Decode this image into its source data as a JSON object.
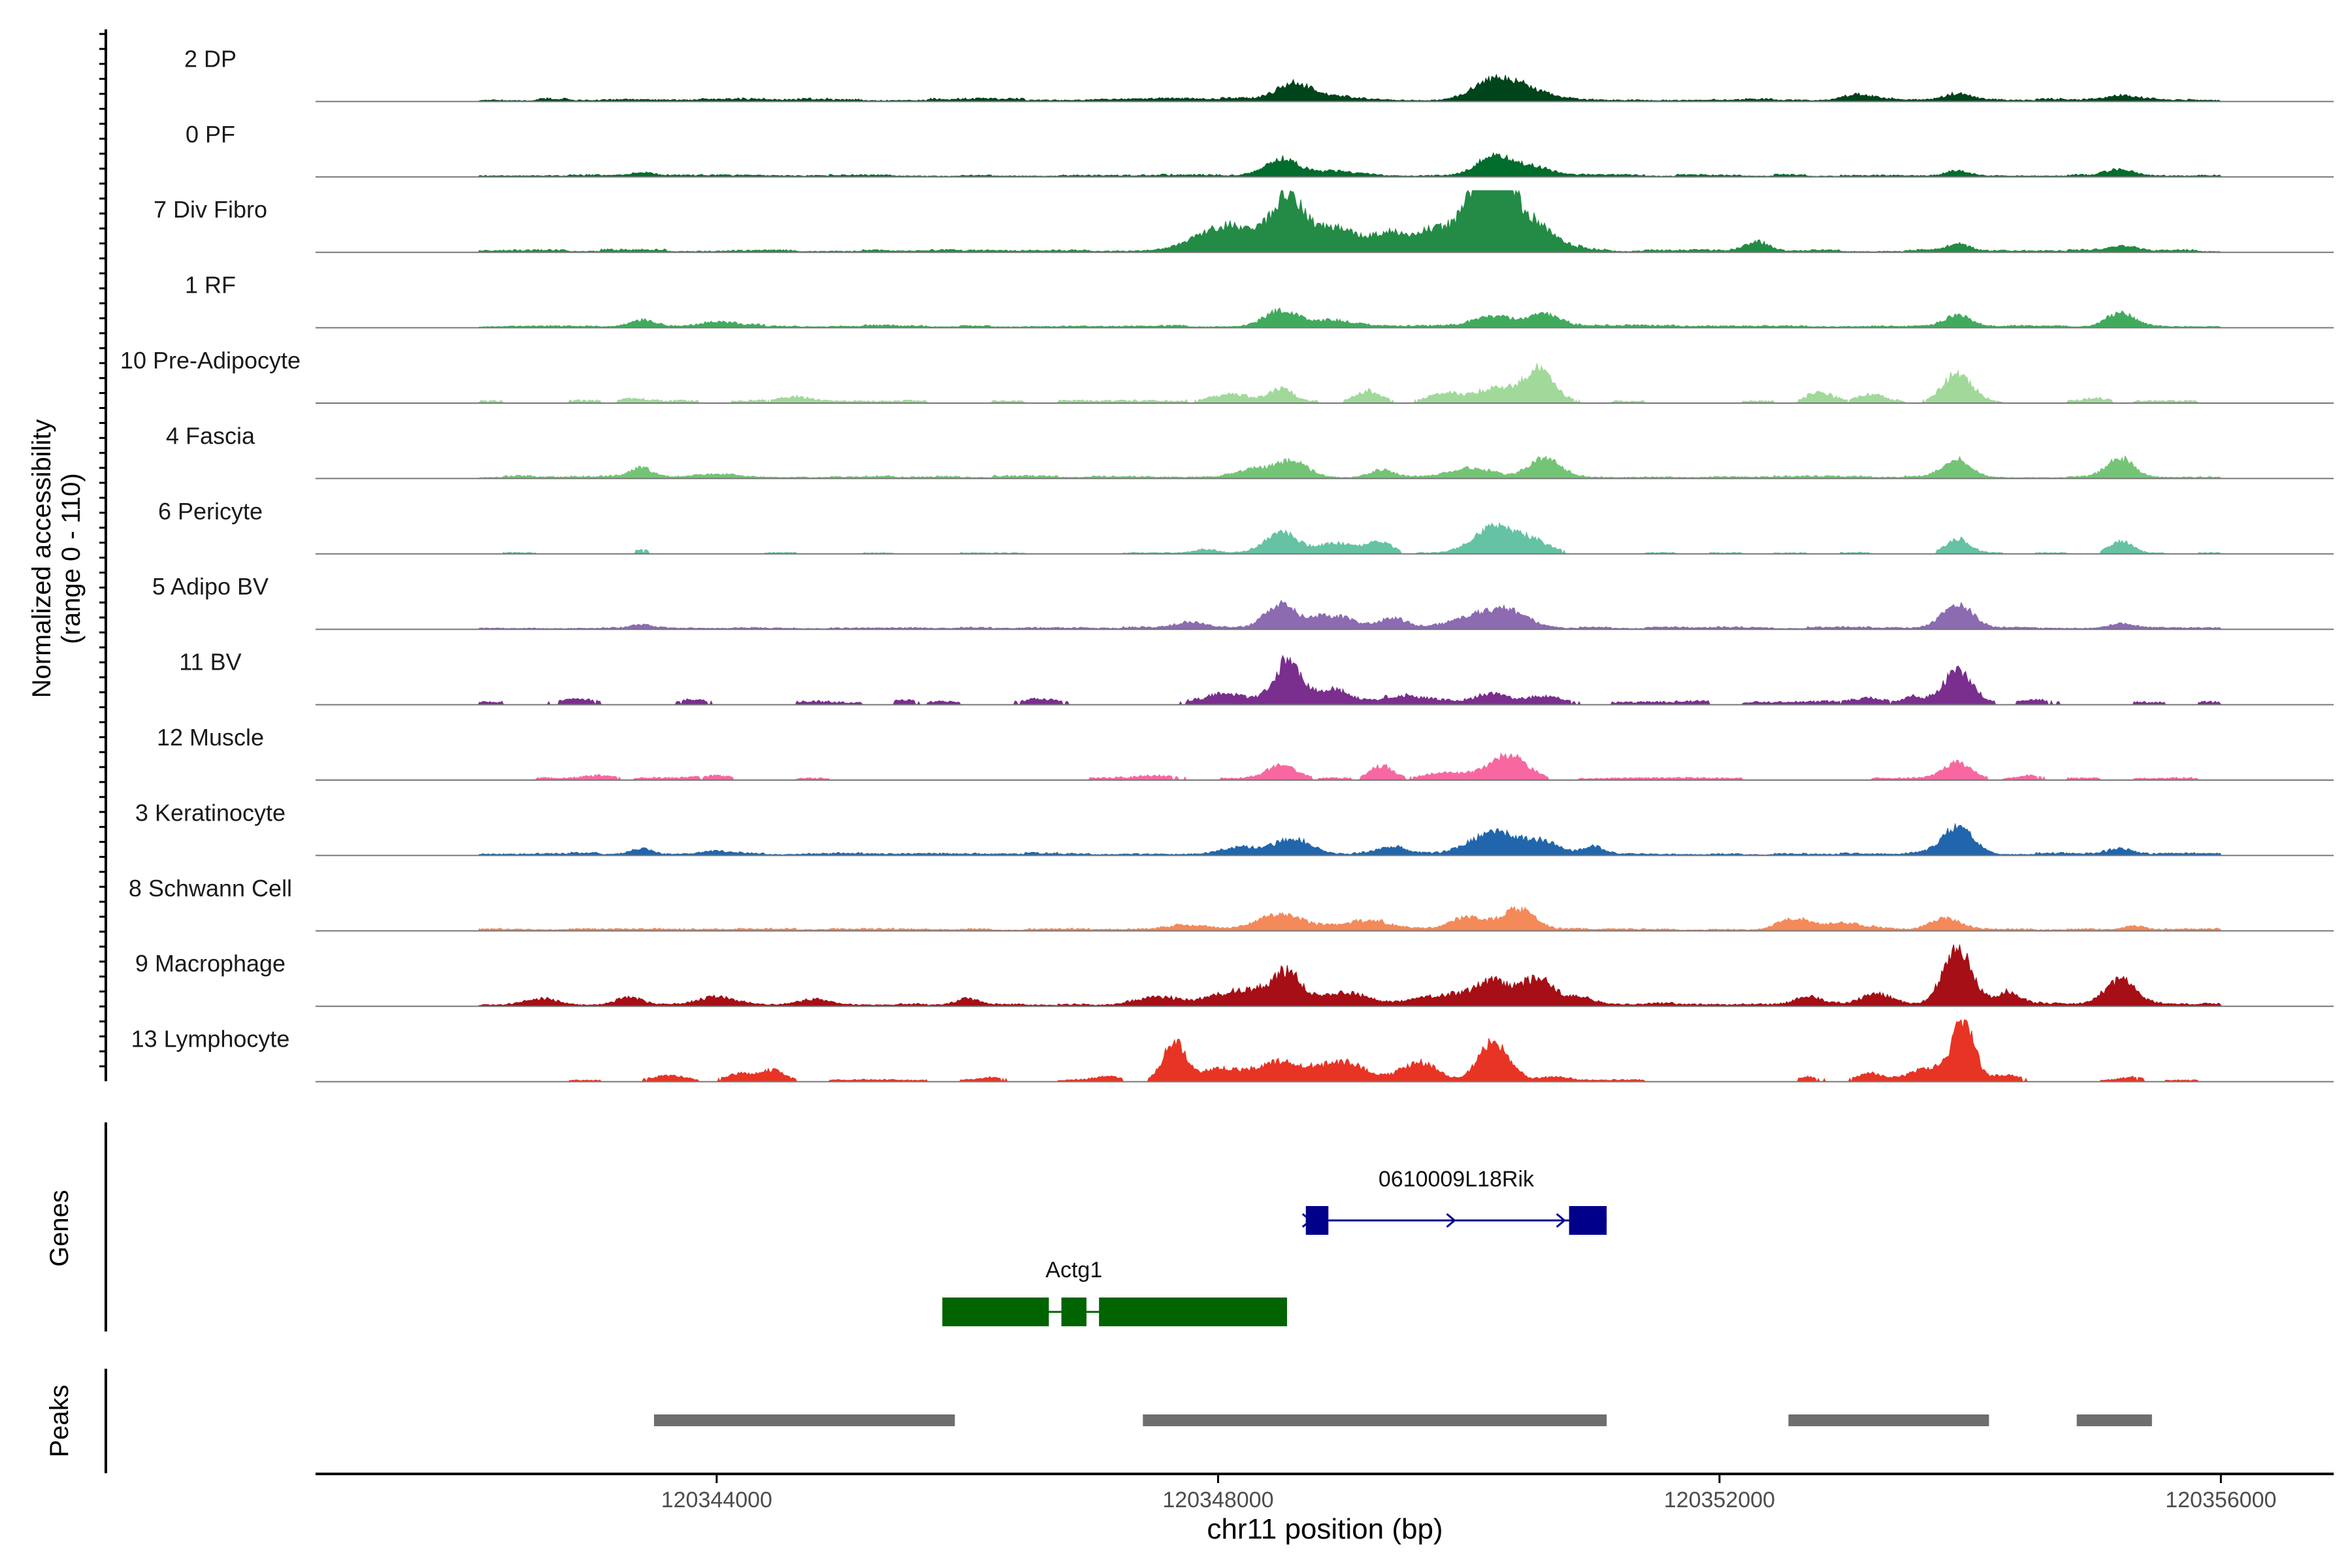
{
  "chart_data": {
    "type": "area",
    "chromosome": "chr11",
    "xlabel": "chr11 position (bp)",
    "xlim": [
      120340800,
      120356900
    ],
    "x_ticks": [
      {
        "value": 120344000,
        "label": "120344000"
      },
      {
        "value": 120348000,
        "label": "120348000"
      },
      {
        "value": 120352000,
        "label": "120352000"
      },
      {
        "value": 120356000,
        "label": "120356000"
      }
    ],
    "coverage": {
      "ylabel_line1": "Normalized accessibility",
      "ylabel_line2": "(range 0 - 110)",
      "ylim": [
        0,
        110
      ],
      "tracks": [
        {
          "name": "2 DP",
          "color": "#00441b",
          "noise": 0.045,
          "sparse": false,
          "peaks": [
            [
              120347600,
              0.03,
              400
            ],
            [
              120348600,
              0.25,
              130
            ],
            [
              120348900,
              0.06,
              250
            ],
            [
              120350200,
              0.32,
              170
            ],
            [
              120350450,
              0.14,
              180
            ],
            [
              120353100,
              0.09,
              120
            ],
            [
              120353900,
              0.1,
              100
            ],
            [
              120355200,
              0.09,
              110
            ]
          ]
        },
        {
          "name": "0 PF",
          "color": "#006d2c",
          "noise": 0.035,
          "sparse": false,
          "peaks": [
            [
              120343400,
              0.06,
              90
            ],
            [
              120348500,
              0.28,
              130
            ],
            [
              120348900,
              0.07,
              220
            ],
            [
              120350200,
              0.32,
              140
            ],
            [
              120350500,
              0.14,
              170
            ],
            [
              120353900,
              0.09,
              90
            ],
            [
              120355200,
              0.1,
              100
            ]
          ]
        },
        {
          "name": "7 Div Fibro",
          "color": "#238b45",
          "noise": 0.04,
          "sparse": false,
          "peaks": [
            [
              120348100,
              0.42,
              260
            ],
            [
              120348550,
              0.82,
              110
            ],
            [
              120348900,
              0.42,
              200
            ],
            [
              120349400,
              0.3,
              160
            ],
            [
              120349700,
              0.2,
              110
            ],
            [
              120350050,
              0.55,
              190
            ],
            [
              120350200,
              1.0,
              140
            ],
            [
              120350500,
              0.45,
              190
            ],
            [
              120352300,
              0.16,
              90
            ],
            [
              120353900,
              0.12,
              90
            ],
            [
              120355200,
              0.09,
              100
            ]
          ]
        },
        {
          "name": "1 RF",
          "color": "#41ab5d",
          "noise": 0.04,
          "sparse": false,
          "peaks": [
            [
              120343400,
              0.1,
              100
            ],
            [
              120344000,
              0.06,
              150
            ],
            [
              120348500,
              0.26,
              130
            ],
            [
              120348900,
              0.1,
              180
            ],
            [
              120350200,
              0.16,
              160
            ],
            [
              120350600,
              0.2,
              120
            ],
            [
              120353900,
              0.2,
              100
            ],
            [
              120355200,
              0.22,
              110
            ]
          ]
        },
        {
          "name": "10 Pre-Adipocyte",
          "color": "#a1d99b",
          "noise": 0.04,
          "sparse": true,
          "peaks": [
            [
              120343300,
              0.06,
              80
            ],
            [
              120344600,
              0.08,
              140
            ],
            [
              120348100,
              0.12,
              160
            ],
            [
              120348500,
              0.22,
              90
            ],
            [
              120349200,
              0.18,
              100
            ],
            [
              120349800,
              0.14,
              120
            ],
            [
              120350200,
              0.22,
              130
            ],
            [
              120350550,
              0.55,
              120
            ],
            [
              120352800,
              0.14,
              100
            ],
            [
              120353200,
              0.12,
              90
            ],
            [
              120353900,
              0.48,
              110
            ],
            [
              120355000,
              0.05,
              100
            ]
          ]
        },
        {
          "name": "4 Fascia",
          "color": "#74c476",
          "noise": 0.04,
          "sparse": false,
          "peaks": [
            [
              120343400,
              0.14,
              90
            ],
            [
              120344000,
              0.06,
              140
            ],
            [
              120348300,
              0.14,
              150
            ],
            [
              120348600,
              0.26,
              120
            ],
            [
              120349300,
              0.12,
              90
            ],
            [
              120350000,
              0.16,
              150
            ],
            [
              120350600,
              0.3,
              130
            ],
            [
              120353900,
              0.3,
              110
            ],
            [
              120355200,
              0.3,
              110
            ]
          ]
        },
        {
          "name": "6 Pericyte",
          "color": "#66c2a4",
          "noise": 0.02,
          "sparse": true,
          "peaks": [
            [
              120343400,
              0.05,
              80
            ],
            [
              120347900,
              0.06,
              80
            ],
            [
              120348500,
              0.34,
              130
            ],
            [
              120348950,
              0.16,
              150
            ],
            [
              120349300,
              0.2,
              90
            ],
            [
              120350200,
              0.42,
              160
            ],
            [
              120350500,
              0.2,
              140
            ],
            [
              120353900,
              0.25,
              90
            ],
            [
              120355200,
              0.2,
              90
            ]
          ]
        },
        {
          "name": "5 Adipo BV",
          "color": "#8c6bb1",
          "noise": 0.035,
          "sparse": false,
          "peaks": [
            [
              120343400,
              0.05,
              80
            ],
            [
              120347800,
              0.1,
              120
            ],
            [
              120348500,
              0.36,
              120
            ],
            [
              120348900,
              0.2,
              180
            ],
            [
              120349400,
              0.14,
              110
            ],
            [
              120350000,
              0.16,
              150
            ],
            [
              120350300,
              0.3,
              170
            ],
            [
              120353900,
              0.4,
              120
            ],
            [
              120355200,
              0.08,
              90
            ]
          ]
        },
        {
          "name": "11 BV",
          "color": "#7a2e8e",
          "noise": 0.05,
          "sparse": true,
          "peaks": [
            [
              120342900,
              0.06,
              120
            ],
            [
              120343800,
              0.06,
              90
            ],
            [
              120345500,
              0.05,
              80
            ],
            [
              120346600,
              0.05,
              150
            ],
            [
              120348100,
              0.15,
              160
            ],
            [
              120348550,
              0.68,
              100
            ],
            [
              120348900,
              0.2,
              150
            ],
            [
              120349500,
              0.1,
              200
            ],
            [
              120350200,
              0.16,
              130
            ],
            [
              120350600,
              0.12,
              120
            ],
            [
              120353200,
              0.08,
              140
            ],
            [
              120353550,
              0.1,
              70
            ],
            [
              120353900,
              0.5,
              120
            ],
            [
              120354500,
              0.06,
              100
            ]
          ]
        },
        {
          "name": "12 Muscle",
          "color": "#f768a1",
          "noise": 0.035,
          "sparse": true,
          "peaks": [
            [
              120343100,
              0.05,
              120
            ],
            [
              120344000,
              0.05,
              120
            ],
            [
              120347500,
              0.05,
              150
            ],
            [
              120348500,
              0.22,
              120
            ],
            [
              120349300,
              0.22,
              90
            ],
            [
              120349800,
              0.1,
              140
            ],
            [
              120350300,
              0.4,
              150
            ],
            [
              120353900,
              0.26,
              110
            ],
            [
              120354500,
              0.05,
              80
            ]
          ]
        },
        {
          "name": "3 Keratinocyte",
          "color": "#2166ac",
          "noise": 0.04,
          "sparse": false,
          "peaks": [
            [
              120343400,
              0.1,
              90
            ],
            [
              120344000,
              0.06,
              120
            ],
            [
              120348200,
              0.1,
              170
            ],
            [
              120348600,
              0.25,
              140
            ],
            [
              120349400,
              0.14,
              110
            ],
            [
              120350200,
              0.36,
              180
            ],
            [
              120350600,
              0.2,
              140
            ],
            [
              120351000,
              0.12,
              80
            ],
            [
              120353900,
              0.48,
              120
            ],
            [
              120355200,
              0.08,
              90
            ]
          ]
        },
        {
          "name": "8 Schwann Cell",
          "color": "#f4895a",
          "noise": 0.035,
          "sparse": false,
          "peaks": [
            [
              120347800,
              0.08,
              160
            ],
            [
              120348500,
              0.26,
              180
            ],
            [
              120349200,
              0.14,
              200
            ],
            [
              120350000,
              0.2,
              150
            ],
            [
              120350400,
              0.34,
              120
            ],
            [
              120352600,
              0.18,
              130
            ],
            [
              120353000,
              0.12,
              150
            ],
            [
              120353800,
              0.2,
              120
            ],
            [
              120355300,
              0.06,
              90
            ]
          ]
        },
        {
          "name": "9 Macrophage",
          "color": "#a50f15",
          "noise": 0.05,
          "sparse": false,
          "peaks": [
            [
              120342600,
              0.1,
              120
            ],
            [
              120343300,
              0.12,
              100
            ],
            [
              120344000,
              0.12,
              150
            ],
            [
              120344800,
              0.08,
              140
            ],
            [
              120346000,
              0.1,
              90
            ],
            [
              120347500,
              0.12,
              160
            ],
            [
              120348200,
              0.26,
              200
            ],
            [
              120348550,
              0.5,
              110
            ],
            [
              120349000,
              0.2,
              180
            ],
            [
              120349800,
              0.16,
              220
            ],
            [
              120350200,
              0.36,
              130
            ],
            [
              120350550,
              0.42,
              130
            ],
            [
              120350900,
              0.12,
              100
            ],
            [
              120352700,
              0.12,
              90
            ],
            [
              120353250,
              0.18,
              130
            ],
            [
              120353900,
              1.0,
              110
            ],
            [
              120354300,
              0.2,
              100
            ],
            [
              120355200,
              0.4,
              120
            ]
          ]
        },
        {
          "name": "13 Lymphocyte",
          "color": "#e83424",
          "noise": 0.03,
          "sparse": true,
          "peaks": [
            [
              120343600,
              0.08,
              120
            ],
            [
              120344200,
              0.12,
              120
            ],
            [
              120344450,
              0.16,
              80
            ],
            [
              120346200,
              0.05,
              90
            ],
            [
              120347100,
              0.06,
              100
            ],
            [
              120347650,
              0.62,
              90
            ],
            [
              120348000,
              0.18,
              160
            ],
            [
              120348500,
              0.3,
              200
            ],
            [
              120349000,
              0.3,
              170
            ],
            [
              120349600,
              0.3,
              140
            ],
            [
              120350200,
              0.65,
              120
            ],
            [
              120350700,
              0.06,
              100
            ],
            [
              120352700,
              0.06,
              90
            ],
            [
              120353200,
              0.12,
              100
            ],
            [
              120353700,
              0.22,
              160
            ],
            [
              120353950,
              1.0,
              80
            ],
            [
              120354300,
              0.1,
              100
            ],
            [
              120355300,
              0.05,
              90
            ]
          ]
        }
      ]
    },
    "genes": {
      "ylabel": "Genes",
      "items": [
        {
          "name": "0610009L18Rik",
          "strand": "+",
          "color": "#00008b",
          "start": 120348700,
          "end": 120351100,
          "exons": [
            [
              120348700,
              120348880
            ],
            [
              120350800,
              120351100
            ]
          ]
        },
        {
          "name": "Actg1",
          "strand": "-",
          "color": "#006400",
          "start": 120345800,
          "end": 120348550,
          "exons": [
            [
              120345800,
              120346650
            ],
            [
              120346750,
              120346950
            ],
            [
              120347050,
              120348550
            ]
          ]
        }
      ]
    },
    "peaks": {
      "ylabel": "Peaks",
      "color": "#6e6e6e",
      "ranges": [
        [
          120343500,
          120345900
        ],
        [
          120347400,
          120351100
        ],
        [
          120352550,
          120354150
        ],
        [
          120354850,
          120355450
        ]
      ]
    }
  }
}
